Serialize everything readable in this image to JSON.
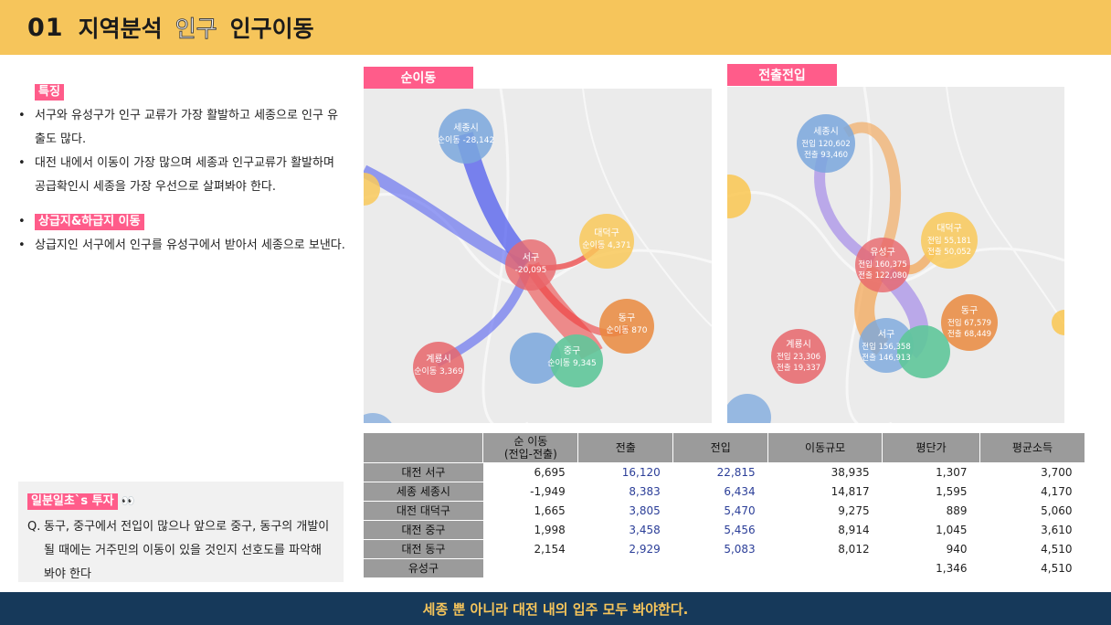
{
  "header": {
    "number": "01",
    "title_a": "지역분석",
    "title_b": "인구",
    "title_c": "인구이동"
  },
  "left": {
    "tag1": "특징",
    "b1": "서구와 유성구가 인구 교류가 가장 활발하고 세종으로 인구 유출도 많다.",
    "b2": "대전 내에서 이동이 가장 많으며 세종과 인구교류가 활발하며 공급확인시 세종을 가장 우선으로 살펴봐야 한다.",
    "tag2": "상급지&하급지 이동",
    "b3": "상급지인 서구에서 인구를 유성구에서 받아서 세종으로 보낸다."
  },
  "qa": {
    "tag": "일분일초`s 투자",
    "emoji": "👀",
    "q": "Q.",
    "text": "동구, 중구에서 전입이 많으나 앞으로 중구, 동구의 개발이될 때에는 거주민의 이동이 있을 것인지 선호도를 파악해 봐야 한다"
  },
  "maps": {
    "left_label": "순이동",
    "right_label": "전출전입",
    "left_bubbles": [
      {
        "name": "세종시",
        "val": "순이동 -28,142",
        "color": "#7aa7dd"
      },
      {
        "name": "대덕구",
        "val": "순이동 4,371",
        "color": "#f9c95a"
      },
      {
        "name": "서구",
        "val": "-20,095",
        "color": "#e8666b"
      },
      {
        "name": "동구",
        "val": "순이동 870",
        "color": "#ea8a3e"
      },
      {
        "name": "중구",
        "val": "순이동 9,345",
        "color": "#5fc79a"
      },
      {
        "name": "계룡시",
        "val": "순이동 3,369",
        "color": "#e8666b"
      }
    ],
    "right_bubbles": [
      {
        "name": "세종시",
        "in": "전입 120,602",
        "out": "전출 93,460",
        "color": "#7aa7dd"
      },
      {
        "name": "대덕구",
        "in": "전입 55,181",
        "out": "전출 50,052",
        "color": "#f9c95a"
      },
      {
        "name": "유성구",
        "in": "전입 160,375",
        "out": "전출 122,080",
        "color": "#e8666b"
      },
      {
        "name": "동구",
        "in": "전입 67,579",
        "out": "전출 68,449",
        "color": "#ea8a3e"
      },
      {
        "name": "계룡시",
        "in": "전입 23,306",
        "out": "전출 19,337",
        "color": "#e8666b"
      },
      {
        "name": "서구",
        "in": "전입 156,358",
        "out": "전출 146,913",
        "color": "#7aa7dd"
      }
    ]
  },
  "table": {
    "headers": [
      "",
      "순 이동\n(전입-전출)",
      "전출",
      "전입",
      "이동규모",
      "평단가",
      "평균소득"
    ],
    "rows": [
      {
        "name": "대전 서구",
        "net": "6,695",
        "out": "16,120",
        "in": "22,815",
        "scale": "38,935",
        "price": "1,307",
        "income": "3,700"
      },
      {
        "name": "세종 세종시",
        "net": "-1,949",
        "out": "8,383",
        "in": "6,434",
        "scale": "14,817",
        "price": "1,595",
        "income": "4,170"
      },
      {
        "name": "대전 대덕구",
        "net": "1,665",
        "out": "3,805",
        "in": "5,470",
        "scale": "9,275",
        "price": "889",
        "income": "5,060"
      },
      {
        "name": "대전 중구",
        "net": "1,998",
        "out": "3,458",
        "in": "5,456",
        "scale": "8,914",
        "price": "1,045",
        "income": "3,610"
      },
      {
        "name": "대전 동구",
        "net": "2,154",
        "out": "2,929",
        "in": "5,083",
        "scale": "8,012",
        "price": "940",
        "income": "4,510"
      },
      {
        "name": "유성구",
        "net": "",
        "out": "",
        "in": "",
        "scale": "",
        "price": "1,346",
        "income": "4,510"
      }
    ]
  },
  "footer": {
    "text": "세종 뿐 아니라 대전 내의 입주 모두 봐야한다."
  }
}
